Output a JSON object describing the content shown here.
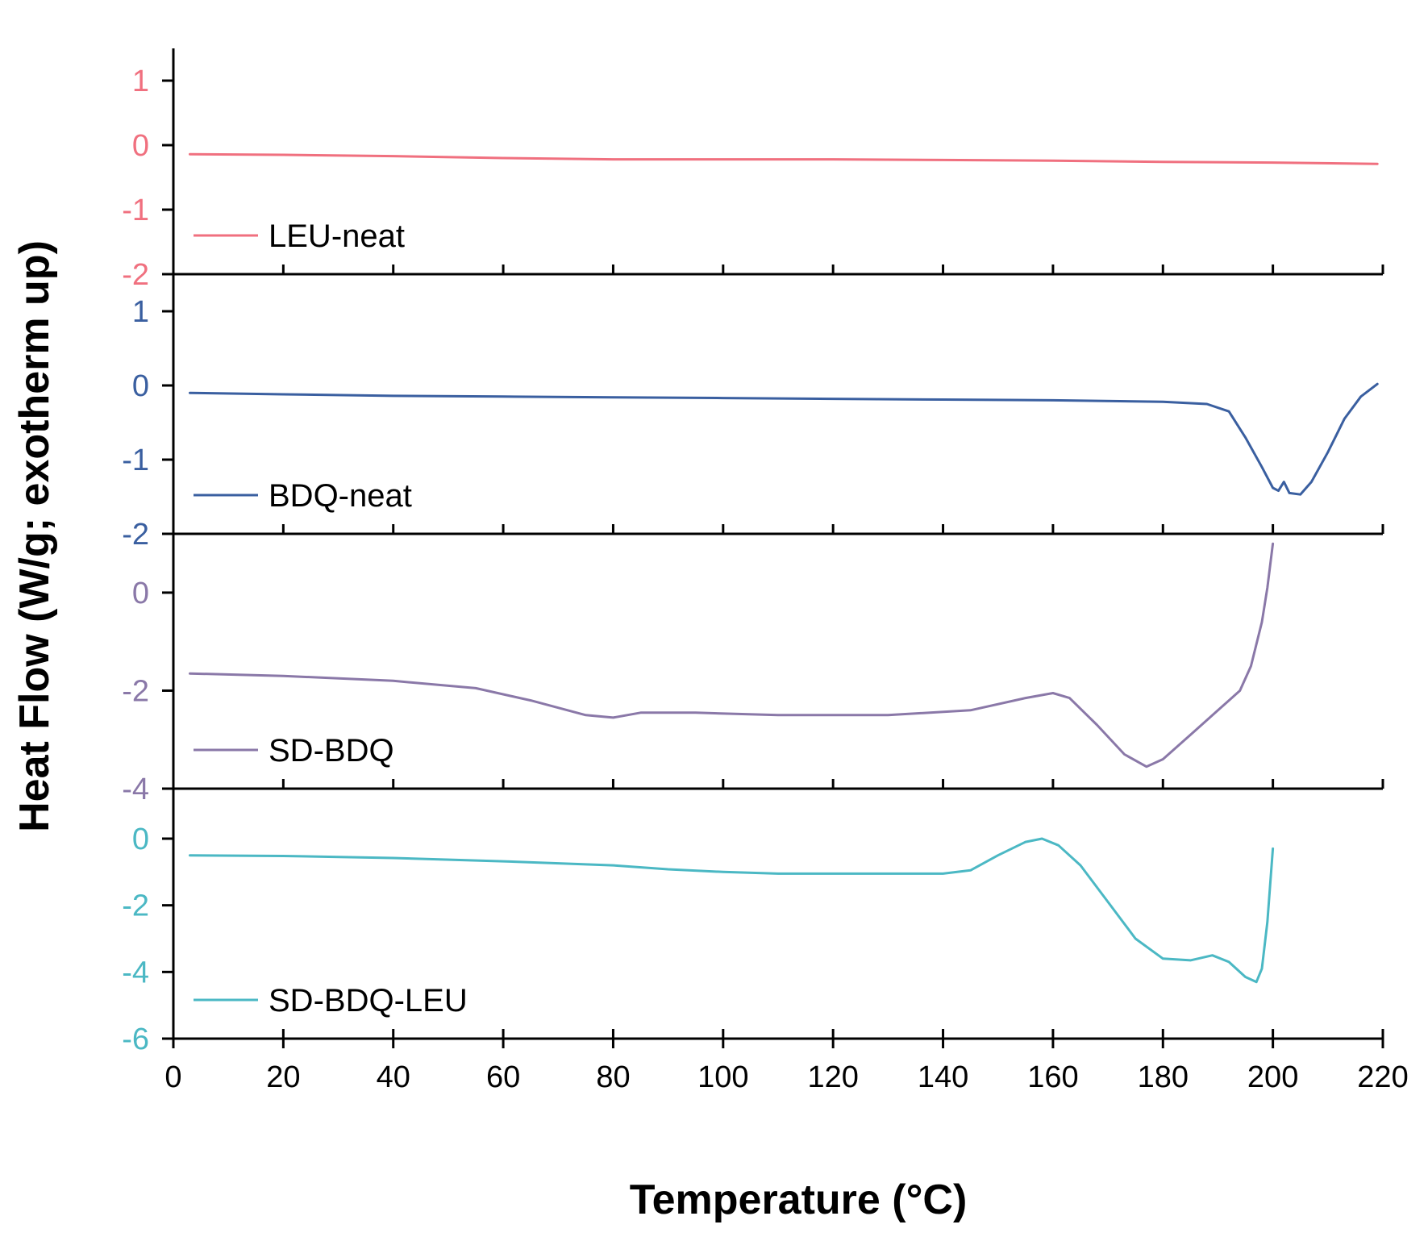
{
  "chart_data": {
    "type": "line",
    "layout": "stacked-panels",
    "xlabel": "Temperature (°C)",
    "ylabel": "Heat Flow (W/g; exotherm up)",
    "xlim": [
      0,
      220
    ],
    "xticks": [
      0,
      20,
      40,
      60,
      80,
      100,
      120,
      140,
      160,
      180,
      200,
      220
    ],
    "panels": [
      {
        "name": "LEU-neat",
        "color": "#f0707f",
        "ylim": [
          -2,
          1.5
        ],
        "yticks": [
          -2,
          -1,
          0,
          1
        ],
        "series": [
          {
            "name": "LEU-neat",
            "x": [
              3,
              20,
              40,
              60,
              80,
              100,
              120,
              140,
              160,
              180,
              200,
              219
            ],
            "y": [
              -0.14,
              -0.15,
              -0.17,
              -0.2,
              -0.22,
              -0.22,
              -0.22,
              -0.23,
              -0.24,
              -0.26,
              -0.27,
              -0.29
            ]
          }
        ]
      },
      {
        "name": "BDQ-neat",
        "color": "#3a5fa0",
        "ylim": [
          -2,
          1.5
        ],
        "yticks": [
          -2,
          -1,
          0,
          1
        ],
        "series": [
          {
            "name": "BDQ-neat",
            "x": [
              3,
              20,
              40,
              60,
              80,
              100,
              120,
              140,
              160,
              180,
              188,
              192,
              195,
              198,
              200,
              201,
              202,
              203,
              205,
              207,
              210,
              213,
              216,
              219
            ],
            "y": [
              -0.1,
              -0.12,
              -0.14,
              -0.15,
              -0.16,
              -0.17,
              -0.18,
              -0.19,
              -0.2,
              -0.22,
              -0.25,
              -0.35,
              -0.7,
              -1.1,
              -1.38,
              -1.42,
              -1.3,
              -1.45,
              -1.47,
              -1.3,
              -0.9,
              -0.45,
              -0.15,
              0.02
            ]
          }
        ]
      },
      {
        "name": "SD-BDQ",
        "color": "#8a78a8",
        "ylim": [
          -4,
          1.2
        ],
        "yticks": [
          -4,
          -2,
          0
        ],
        "series": [
          {
            "name": "SD-BDQ",
            "x": [
              3,
              20,
              40,
              55,
              65,
              75,
              80,
              85,
              95,
              110,
              130,
              145,
              155,
              160,
              163,
              168,
              173,
              177,
              180,
              185,
              190,
              194,
              196,
              198,
              199,
              200
            ],
            "y": [
              -1.65,
              -1.7,
              -1.8,
              -1.95,
              -2.2,
              -2.5,
              -2.55,
              -2.45,
              -2.45,
              -2.5,
              -2.5,
              -2.4,
              -2.15,
              -2.05,
              -2.15,
              -2.7,
              -3.3,
              -3.55,
              -3.4,
              -2.9,
              -2.4,
              -2.0,
              -1.5,
              -0.6,
              0.1,
              1.0
            ]
          }
        ]
      },
      {
        "name": "SD-BDQ-LEU",
        "color": "#4bb8c4",
        "ylim": [
          -6,
          1.5
        ],
        "yticks": [
          -6,
          -4,
          -2,
          0
        ],
        "series": [
          {
            "name": "SD-BDQ-LEU",
            "x": [
              3,
              20,
              40,
              60,
              80,
              90,
              100,
              110,
              120,
              130,
              140,
              145,
              150,
              155,
              158,
              161,
              165,
              170,
              175,
              180,
              185,
              189,
              192,
              195,
              197,
              198,
              199,
              200
            ],
            "y": [
              -0.5,
              -0.52,
              -0.58,
              -0.68,
              -0.8,
              -0.92,
              -1.0,
              -1.05,
              -1.05,
              -1.05,
              -1.05,
              -0.95,
              -0.5,
              -0.1,
              0.0,
              -0.2,
              -0.8,
              -1.9,
              -3.0,
              -3.6,
              -3.65,
              -3.5,
              -3.7,
              -4.15,
              -4.3,
              -3.9,
              -2.5,
              -0.3
            ]
          }
        ]
      }
    ]
  }
}
